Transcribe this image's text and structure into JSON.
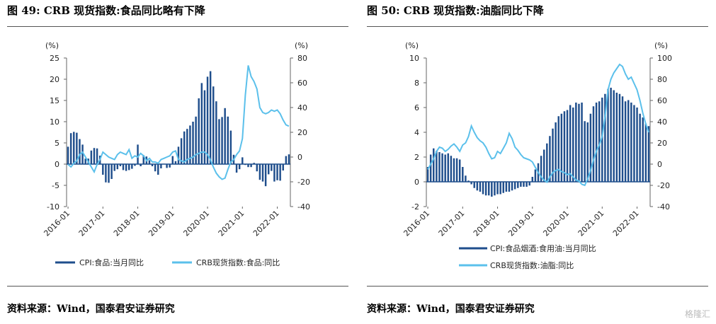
{
  "panels": [
    {
      "title": "图 49: CRB 现货指数:食品同比略有下降",
      "source": "资料来源：Wind，国泰君安证券研究"
    },
    {
      "title": "图 50: CRB 现货指数:油脂同比下降",
      "source": "资料来源：Wind，国泰君安证券研究"
    }
  ],
  "watermark": "格隆汇",
  "colors": {
    "bar": "#1f4e8c",
    "line": "#5bc0eb"
  },
  "chart_data": [
    {
      "type": "bar+line",
      "left_axis_unit": "(%)",
      "right_axis_unit": "(%)",
      "left_ylim": [
        -10,
        25
      ],
      "left_ticks": [
        -10,
        -5,
        0,
        5,
        10,
        15,
        20,
        25
      ],
      "right_ylim": [
        -40,
        80
      ],
      "right_ticks": [
        -40,
        -20,
        0,
        20,
        40,
        60,
        80
      ],
      "x_ticks": [
        "2016-01",
        "2017-01",
        "2018-01",
        "2019-01",
        "2020-01",
        "2021-01",
        "2022-01"
      ],
      "x_range": [
        "2016-01",
        "2022-05"
      ],
      "series": [
        {
          "name": "CPI:食品:当月同比",
          "axis": "left",
          "kind": "bar",
          "start": "2016-01",
          "values": [
            4.1,
            7.3,
            7.6,
            7.4,
            5.9,
            4.6,
            1.3,
            1.3,
            3.2,
            3.8,
            3.7,
            2.0,
            -2.5,
            -4.3,
            -4.4,
            -3.5,
            -1.6,
            -1.2,
            -0.5,
            -1.4,
            -1.6,
            -1.4,
            -1.1,
            -0.4,
            4.6,
            -0.5,
            2.1,
            1.8,
            0.9,
            -0.5,
            -1.7,
            -2.5,
            -1.0,
            0.1,
            -0.9,
            -0.8,
            1.9,
            0.7,
            4.1,
            6.1,
            7.7,
            8.3,
            9.1,
            10.0,
            11.2,
            15.5,
            19.1,
            17.4,
            20.6,
            21.9,
            18.3,
            14.8,
            10.6,
            11.1,
            13.2,
            11.2,
            7.9,
            2.2,
            -2.0,
            -1.2,
            1.6,
            -0.2,
            -0.7,
            -0.7,
            0.3,
            -1.7,
            -3.7,
            -4.1,
            -5.2,
            -2.4,
            -1.6,
            -4.1,
            -3.8,
            -3.9,
            -1.5,
            1.9,
            2.3
          ]
        },
        {
          "name": "CRB现货指数:食品:同比",
          "axis": "right",
          "kind": "line",
          "start": "2016-01",
          "values": [
            -6,
            -8,
            -5,
            -3,
            2,
            4,
            0,
            -4,
            -8,
            -12,
            -6,
            -2,
            4,
            2,
            0,
            -1,
            -2,
            2,
            4,
            3,
            2,
            6,
            -1,
            1,
            0,
            3,
            1,
            -3,
            -1,
            -4,
            -4,
            -5,
            -2,
            -1,
            0,
            1,
            4,
            5,
            -2,
            -3,
            -4,
            -2,
            -1,
            0,
            2,
            3,
            4,
            4,
            2,
            -2,
            -8,
            -13,
            -16,
            -18,
            -17,
            -10,
            -4,
            -2,
            2,
            5,
            15,
            50,
            74,
            65,
            61,
            55,
            40,
            36,
            35,
            36,
            38,
            37,
            38,
            35,
            30,
            26,
            25
          ]
        }
      ]
    },
    {
      "type": "bar+line",
      "left_axis_unit": "(%)",
      "right_axis_unit": "(%)",
      "left_ylim": [
        -2,
        10
      ],
      "left_ticks": [
        -2,
        0,
        2,
        4,
        6,
        8,
        10
      ],
      "right_ylim": [
        -40,
        100
      ],
      "right_ticks": [
        -40,
        -20,
        0,
        20,
        40,
        60,
        80,
        100
      ],
      "x_ticks": [
        "2016-01",
        "2017-01",
        "2018-01",
        "2019-01",
        "2020-01",
        "2021-01",
        "2022-01"
      ],
      "x_range": [
        "2016-01",
        "2022-05"
      ],
      "series": [
        {
          "name": "CPI:食品烟酒:食用油:当月同比",
          "axis": "left",
          "kind": "bar",
          "start": "2016-01",
          "values": [
            1.2,
            2.2,
            2.7,
            2.5,
            2.4,
            2.3,
            2.2,
            2.3,
            2.1,
            1.9,
            1.9,
            1.8,
            1.2,
            0.5,
            0.1,
            -0.2,
            -0.5,
            -0.7,
            -0.8,
            -1.0,
            -1.1,
            -1.1,
            -1.2,
            -1.1,
            -1.0,
            -1.0,
            -0.9,
            -0.8,
            -0.8,
            -0.7,
            -0.6,
            -0.5,
            -0.4,
            -0.4,
            -0.4,
            -0.3,
            0.4,
            1.0,
            1.5,
            2.1,
            2.6,
            3.1,
            3.7,
            4.3,
            4.8,
            5.3,
            5.5,
            5.7,
            5.8,
            6.2,
            6.0,
            6.4,
            6.3,
            6.4,
            4.9,
            4.8,
            5.5,
            6.1,
            6.4,
            6.5,
            6.8,
            7.1,
            7.5,
            7.6,
            7.4,
            7.2,
            7.1,
            6.9,
            6.5,
            6.6,
            6.4,
            6.2,
            6.0,
            5.5,
            5.2,
            4.7,
            4.5
          ]
        },
        {
          "name": "CRB现货指数:油脂:同比",
          "axis": "right",
          "kind": "line",
          "start": "2016-01",
          "values": [
            -5,
            0,
            5,
            12,
            16,
            15,
            12,
            14,
            17,
            19,
            16,
            12,
            18,
            20,
            26,
            36,
            30,
            25,
            22,
            20,
            16,
            10,
            5,
            6,
            12,
            10,
            15,
            20,
            29,
            24,
            16,
            13,
            9,
            6,
            5,
            4,
            2,
            -3,
            -8,
            -12,
            -15,
            -17,
            -12,
            -8,
            -6,
            -5,
            -7,
            -8,
            -10,
            -9,
            -12,
            -15,
            -16,
            -19,
            -20,
            -14,
            -6,
            4,
            12,
            18,
            26,
            45,
            70,
            80,
            86,
            90,
            94,
            92,
            85,
            80,
            82,
            76,
            70,
            60,
            48,
            38,
            30
          ]
        }
      ]
    }
  ],
  "legends": [
    {
      "bar_label": "CPI:食品:当月同比",
      "line_label": "CRB现货指数:食品:同比"
    },
    {
      "bar_label": "CPI:食品烟酒:食用油:当月同比",
      "line_label": "CRB现货指数:油脂:同比"
    }
  ]
}
